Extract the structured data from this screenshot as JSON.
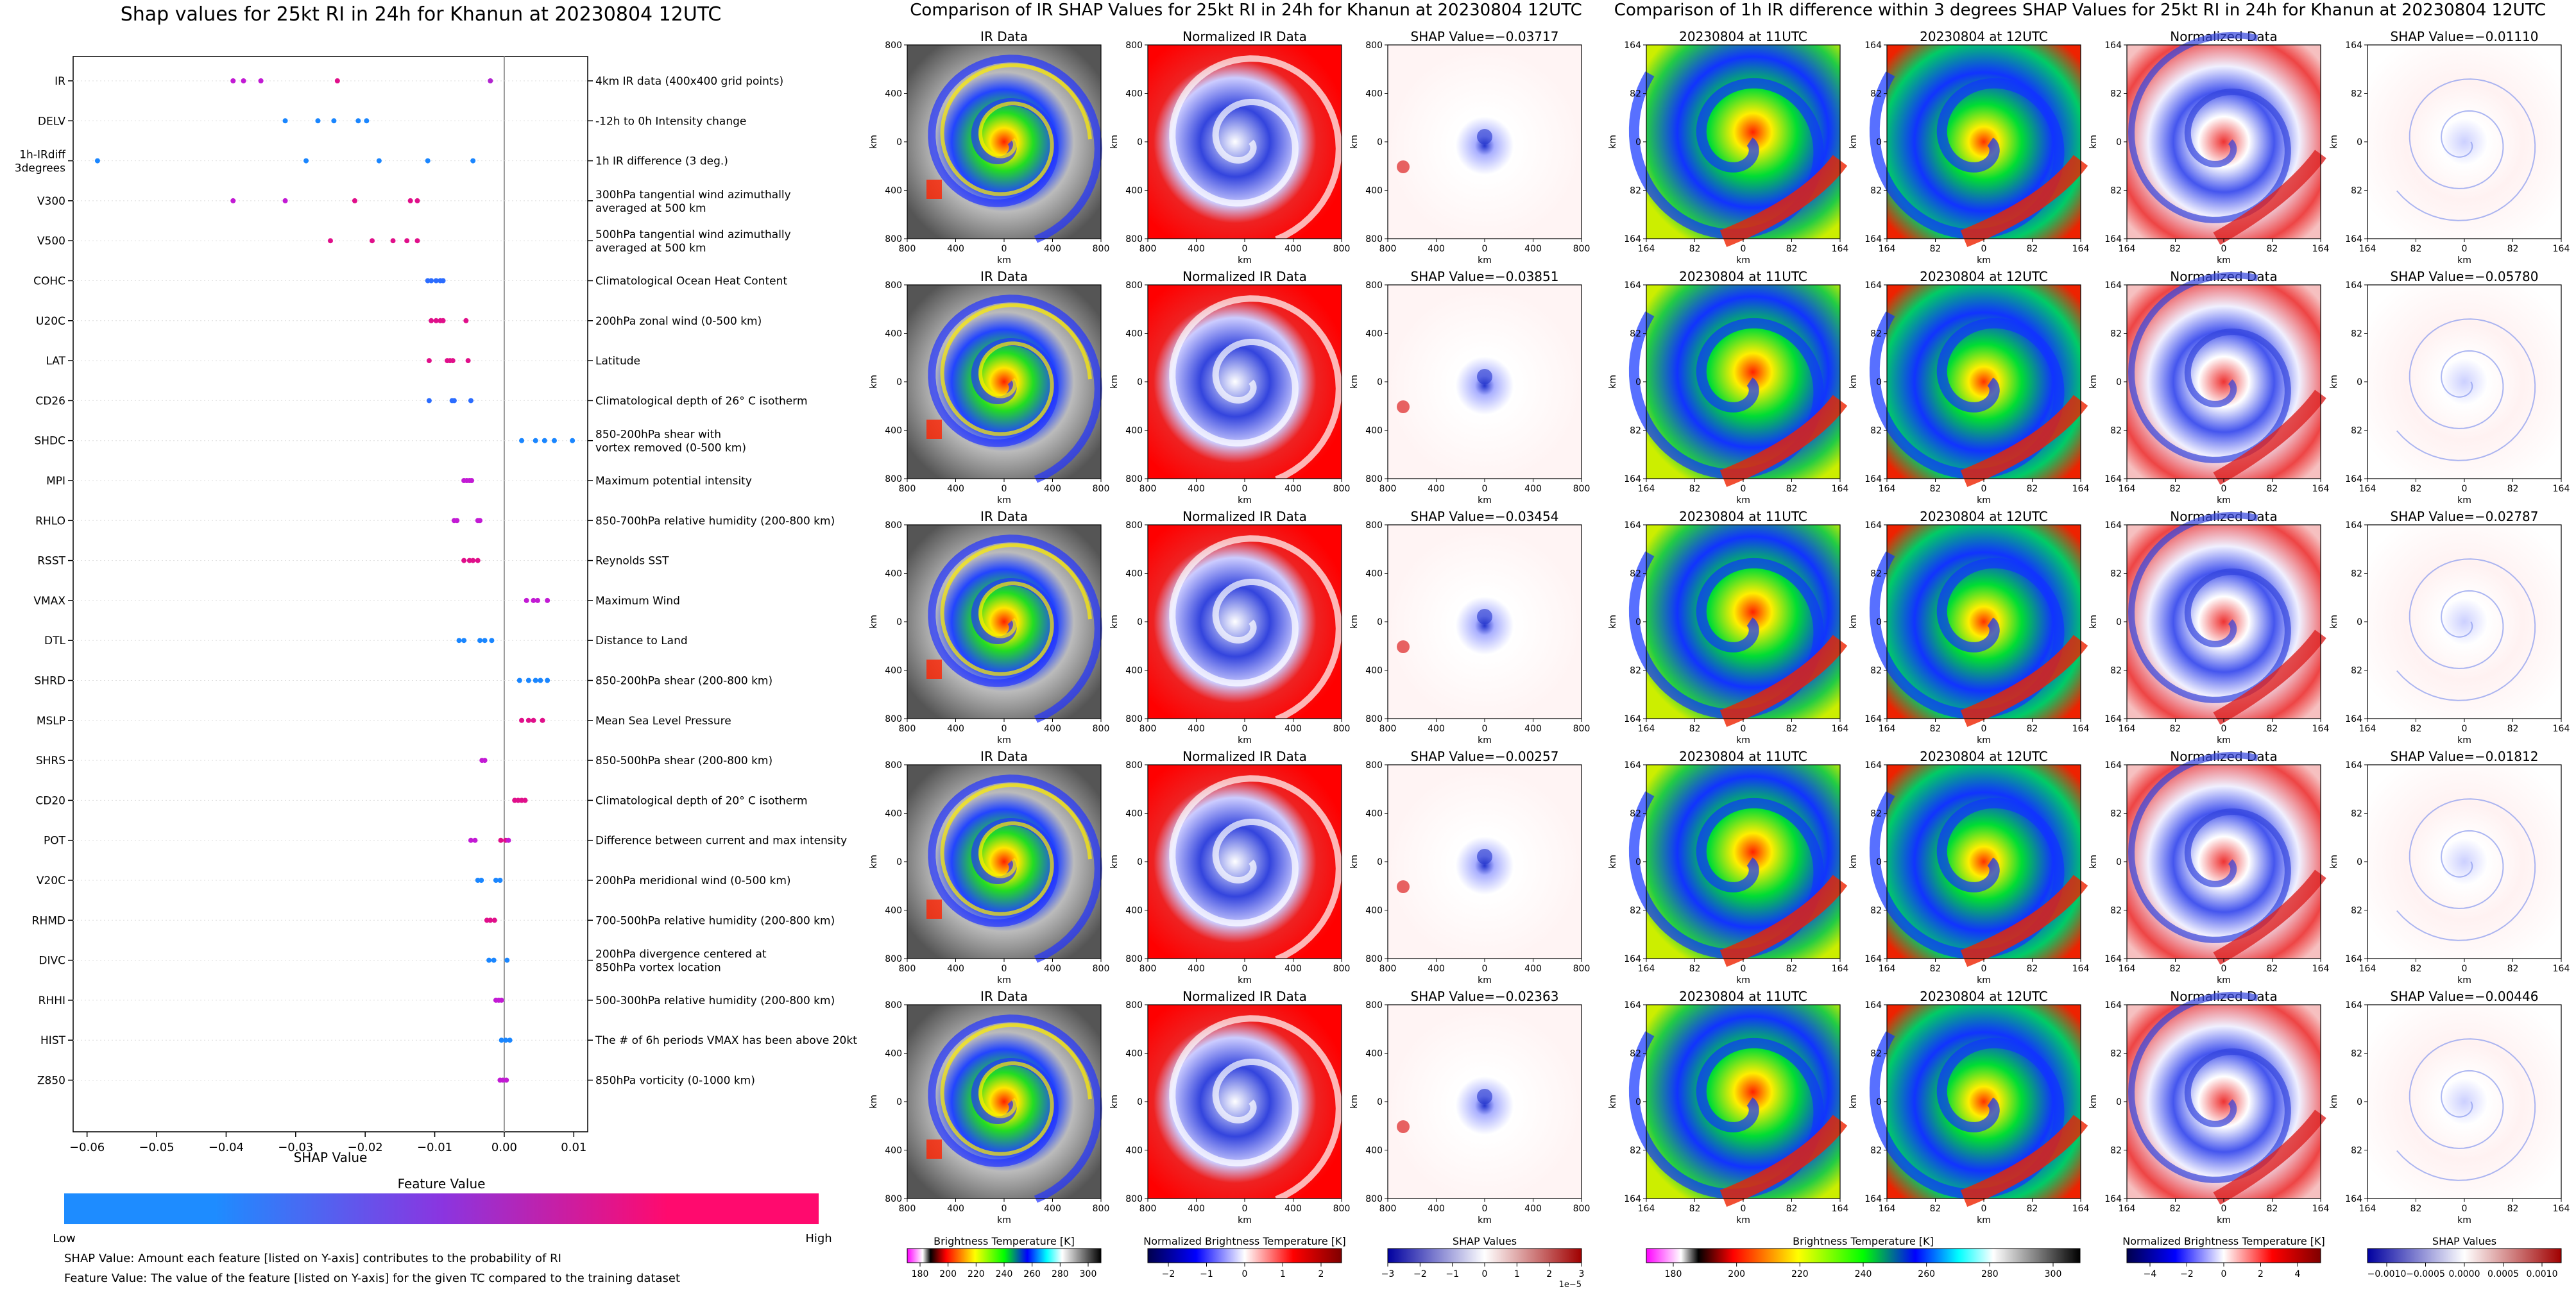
{
  "chart_data": [
    {
      "type": "scatter",
      "title": "Shap values for 25kt RI in 24h for Khanun at 20230804 12UTC",
      "xlabel": "SHAP Value",
      "xlim": [
        -0.062,
        0.012
      ],
      "xticks": [
        "−0.06",
        "−0.05",
        "−0.04",
        "−0.03",
        "−0.02",
        "−0.01",
        "0.00",
        "0.01"
      ],
      "xtick_values": [
        -0.06,
        -0.05,
        -0.04,
        -0.03,
        -0.02,
        -0.01,
        0.0,
        0.01
      ],
      "grid": false,
      "features": [
        {
          "name": "IR",
          "desc": [
            "4km IR data (400x400 grid points)"
          ],
          "values": [
            -0.039,
            -0.0375,
            -0.035,
            -0.024,
            -0.002
          ],
          "colors": [
            "#c21ad4",
            "#c21ad4",
            "#c21ad4",
            "#e00f8a",
            "#b224d0"
          ]
        },
        {
          "name": "DELV",
          "desc": [
            "-12h to 0h Intensity change"
          ],
          "values": [
            -0.0315,
            -0.0268,
            -0.0245,
            -0.021,
            -0.0198
          ],
          "colors": [
            "#1a86ff",
            "#1a86ff",
            "#1a86ff",
            "#1a86ff",
            "#1a86ff"
          ]
        },
        {
          "name": "1h-IRdiff\n3degrees",
          "desc": [
            "1h IR difference (3 deg.)"
          ],
          "values": [
            -0.0585,
            -0.0285,
            -0.018,
            -0.011,
            -0.0045
          ],
          "colors": [
            "#1a86ff",
            "#1a86ff",
            "#1a86ff",
            "#1a86ff",
            "#1a86ff"
          ]
        },
        {
          "name": "V300",
          "desc": [
            "300hPa tangential wind azimuthally",
            "averaged at 500 km"
          ],
          "values": [
            -0.039,
            -0.0315,
            -0.0215,
            -0.0135,
            -0.0125
          ],
          "colors": [
            "#c21ad4",
            "#c21ad4",
            "#e00f8a",
            "#e00f8a",
            "#e00f8a"
          ]
        },
        {
          "name": "V500",
          "desc": [
            "500hPa tangential wind azimuthally",
            "averaged at 500 km"
          ],
          "values": [
            -0.025,
            -0.019,
            -0.016,
            -0.014,
            -0.0125
          ],
          "colors": [
            "#e00f8a",
            "#e00f8a",
            "#e00f8a",
            "#e00f8a",
            "#e00f8a"
          ]
        },
        {
          "name": "COHC",
          "desc": [
            "Climatological Ocean Heat Content"
          ],
          "values": [
            -0.011,
            -0.0105,
            -0.0098,
            -0.0092,
            -0.0088
          ],
          "colors": [
            "#2b6cff",
            "#2b6cff",
            "#2b6cff",
            "#2b6cff",
            "#2b6cff"
          ]
        },
        {
          "name": "U20C",
          "desc": [
            "200hPa zonal wind (0-500 km)"
          ],
          "values": [
            -0.0105,
            -0.0098,
            -0.0092,
            -0.0088,
            -0.0055
          ],
          "colors": [
            "#e00f8a",
            "#e00f8a",
            "#e00f8a",
            "#e00f8a",
            "#e00f8a"
          ]
        },
        {
          "name": "LAT",
          "desc": [
            "Latitude"
          ],
          "values": [
            -0.0108,
            -0.0082,
            -0.0078,
            -0.0074,
            -0.0052
          ],
          "colors": [
            "#e00f8a",
            "#e00f8a",
            "#e00f8a",
            "#e00f8a",
            "#e00f8a"
          ]
        },
        {
          "name": "CD26",
          "desc": [
            "Climatological depth of 26° C isotherm"
          ],
          "values": [
            -0.0108,
            -0.0075,
            -0.0072,
            -0.0048
          ],
          "colors": [
            "#2b6cff",
            "#2b6cff",
            "#2b6cff",
            "#2b6cff"
          ]
        },
        {
          "name": "SHDC",
          "desc": [
            "850-200hPa shear with",
            "vortex removed (0-500 km)"
          ],
          "values": [
            0.0025,
            0.0045,
            0.0058,
            0.0072,
            0.0098
          ],
          "colors": [
            "#1a86ff",
            "#1a86ff",
            "#1a86ff",
            "#1a86ff",
            "#1a86ff"
          ]
        },
        {
          "name": "MPI",
          "desc": [
            "Maximum potential intensity"
          ],
          "values": [
            -0.0058,
            -0.0054,
            -0.005,
            -0.0047
          ],
          "colors": [
            "#c21ad4",
            "#c21ad4",
            "#c21ad4",
            "#c21ad4"
          ]
        },
        {
          "name": "RHLO",
          "desc": [
            "850-700hPa relative humidity (200-800 km)"
          ],
          "values": [
            -0.0072,
            -0.0068,
            -0.0038,
            -0.0035
          ],
          "colors": [
            "#c21ad4",
            "#c21ad4",
            "#c21ad4",
            "#c21ad4"
          ]
        },
        {
          "name": "RSST",
          "desc": [
            "Reynolds SST"
          ],
          "values": [
            -0.0058,
            -0.005,
            -0.0045,
            -0.0038
          ],
          "colors": [
            "#e00f8a",
            "#e00f8a",
            "#e00f8a",
            "#e00f8a"
          ]
        },
        {
          "name": "VMAX",
          "desc": [
            "Maximum Wind"
          ],
          "values": [
            0.0032,
            0.0042,
            0.0048,
            0.0062
          ],
          "colors": [
            "#c21ad4",
            "#c21ad4",
            "#c21ad4",
            "#c21ad4"
          ]
        },
        {
          "name": "DTL",
          "desc": [
            "Distance to Land"
          ],
          "values": [
            -0.0065,
            -0.0058,
            -0.0035,
            -0.0028,
            -0.0018
          ],
          "colors": [
            "#1a86ff",
            "#1a86ff",
            "#1a86ff",
            "#1a86ff",
            "#1a86ff"
          ]
        },
        {
          "name": "SHRD",
          "desc": [
            "850-200hPa shear (200-800 km)"
          ],
          "values": [
            0.0022,
            0.0035,
            0.0045,
            0.0052,
            0.0062
          ],
          "colors": [
            "#1a86ff",
            "#1a86ff",
            "#1a86ff",
            "#1a86ff",
            "#1a86ff"
          ]
        },
        {
          "name": "MSLP",
          "desc": [
            "Mean Sea Level Pressure"
          ],
          "values": [
            0.0025,
            0.0035,
            0.0042,
            0.0055
          ],
          "colors": [
            "#e00f8a",
            "#e00f8a",
            "#e00f8a",
            "#e00f8a"
          ]
        },
        {
          "name": "SHRS",
          "desc": [
            "850-500hPa shear (200-800 km)"
          ],
          "values": [
            -0.0032,
            -0.0028
          ],
          "colors": [
            "#c21ad4",
            "#c21ad4"
          ]
        },
        {
          "name": "CD20",
          "desc": [
            "Climatological depth of 20° C isotherm"
          ],
          "values": [
            0.0015,
            0.002,
            0.0025,
            0.003
          ],
          "colors": [
            "#e00f8a",
            "#e00f8a",
            "#e00f8a",
            "#e00f8a"
          ]
        },
        {
          "name": "POT",
          "desc": [
            "Difference between current and max intensity"
          ],
          "values": [
            -0.0048,
            -0.0042,
            -0.0005,
            0.0002,
            0.0006
          ],
          "colors": [
            "#c21ad4",
            "#c21ad4",
            "#e00f8a",
            "#e00f8a",
            "#c21ad4"
          ]
        },
        {
          "name": "V20C",
          "desc": [
            "200hPa meridional wind (0-500 km)"
          ],
          "values": [
            -0.0038,
            -0.0033,
            -0.0012,
            -0.0006
          ],
          "colors": [
            "#1a86ff",
            "#1a86ff",
            "#1a86ff",
            "#1a86ff"
          ]
        },
        {
          "name": "RHMD",
          "desc": [
            "700-500hPa relative humidity (200-800 km)"
          ],
          "values": [
            -0.0025,
            -0.002,
            -0.0014
          ],
          "colors": [
            "#e00f8a",
            "#e00f8a",
            "#e00f8a"
          ]
        },
        {
          "name": "DIVC",
          "desc": [
            "200hPa divergence centered at",
            "850hPa vortex location"
          ],
          "values": [
            -0.0022,
            -0.0015,
            0.0004
          ],
          "colors": [
            "#1a86ff",
            "#1a86ff",
            "#1a86ff"
          ]
        },
        {
          "name": "RHHI",
          "desc": [
            "500-300hPa relative humidity (200-800 km)"
          ],
          "values": [
            -0.0012,
            -0.0008,
            -0.0004
          ],
          "colors": [
            "#c21ad4",
            "#c21ad4",
            "#c21ad4"
          ]
        },
        {
          "name": "HIST",
          "desc": [
            "The # of 6h periods VMAX has been above 20kt"
          ],
          "values": [
            -0.0004,
            0.0002,
            0.0008
          ],
          "colors": [
            "#1a86ff",
            "#1a86ff",
            "#1a86ff"
          ]
        },
        {
          "name": "Z850",
          "desc": [
            "850hPa vorticity (0-1000 km)"
          ],
          "values": [
            -0.0006,
            -0.0002,
            0.0003
          ],
          "colors": [
            "#c21ad4",
            "#c21ad4",
            "#c21ad4"
          ]
        }
      ],
      "colorbar": {
        "title": "Feature Value",
        "low": "Low",
        "high": "High",
        "colors": [
          "#1e8cff",
          "#8a35e0",
          "#ff0a6e"
        ]
      },
      "notes": [
        "SHAP Value: Amount each feature [listed on Y-axis] contributes to the probability of RI",
        "Feature Value: The value of the feature [listed on Y-axis] for the given TC compared to the training dataset"
      ]
    },
    {
      "type": "heatmap",
      "title": "Comparison of IR SHAP Values for 25kt RI in 24h for Khanun at 20230804 12UTC",
      "panel_titles": [
        "IR Data",
        "Normalized IR Data",
        "SHAP Value"
      ],
      "shap_values": [
        "−0.03717",
        "−0.03851",
        "−0.03454",
        "−0.00257",
        "−0.02363"
      ],
      "shap_prefix": "SHAP Value=",
      "yticks": [
        "800",
        "400",
        "0",
        "400",
        "800"
      ],
      "xticks": [
        "800",
        "400",
        "0",
        "400",
        "800"
      ],
      "xlabel": "km",
      "ylabel": "km",
      "colorbars": [
        {
          "label": "Brightness Temperature [K]",
          "ticks": [
            "180",
            "200",
            "220",
            "240",
            "260",
            "280",
            "300"
          ]
        },
        {
          "label": "Normalized Brightness Temperature [K]",
          "ticks": [
            "−2",
            "−1",
            "0",
            "1",
            "2"
          ]
        },
        {
          "label": "SHAP Values",
          "ticks": [
            "−3",
            "−2",
            "−1",
            "0",
            "1",
            "2",
            "3"
          ],
          "offset": "1e−5"
        }
      ]
    },
    {
      "type": "heatmap",
      "title": "Comparison of 1h IR difference within 3 degrees SHAP Values for 25kt RI in 24h for Khanun at 20230804 12UTC",
      "panel_titles": [
        "20230804 at 11UTC",
        "20230804 at 12UTC",
        "Normalized Data",
        "SHAP Value"
      ],
      "shap_values": [
        "−0.01110",
        "−0.05780",
        "−0.02787",
        "−0.01812",
        "−0.00446"
      ],
      "shap_prefix": "SHAP Value=",
      "yticks": [
        "164",
        "82",
        "0",
        "82",
        "164"
      ],
      "xticks": [
        "164",
        "82",
        "0",
        "82",
        "164"
      ],
      "xlabel": "km",
      "ylabel": "km",
      "colorbars": [
        {
          "label": "Brightness Temperature [K]",
          "ticks": [
            "180",
            "200",
            "220",
            "240",
            "260",
            "280",
            "300"
          ]
        },
        {
          "label": "Normalized Brightness Temperature [K]",
          "ticks": [
            "−4",
            "−2",
            "0",
            "2",
            "4"
          ]
        },
        {
          "label": "SHAP Values",
          "ticks": [
            "−0.0010",
            "−0.0005",
            "0.0000",
            "0.0005",
            "0.0010"
          ]
        }
      ]
    }
  ]
}
